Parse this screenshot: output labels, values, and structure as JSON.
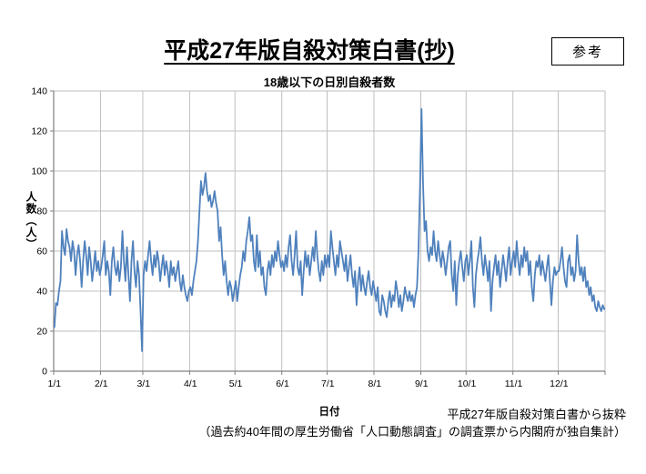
{
  "doc": {
    "title": "平成27年版自殺対策白書(抄)",
    "reference_label": "参考",
    "source_note": "平成27年版自殺対策白書から抜粋",
    "source_detail": "（過去約40年間の厚生労働省「人口動態調査」の調査票から内閣府が独自集計）"
  },
  "chart_data": {
    "type": "line",
    "title": "18歳以下の日別自殺者数",
    "xlabel": "日付",
    "ylabel": "人数（人）",
    "ylim": [
      0,
      140
    ],
    "ytick_step": 20,
    "grid": true,
    "legend": "none",
    "x_tick_labels": [
      "1/1",
      "2/1",
      "3/1",
      "4/1",
      "5/1",
      "6/1",
      "7/1",
      "8/1",
      "9/1",
      "10/1",
      "11/1",
      "12/1"
    ],
    "month_start_days": [
      0,
      31,
      59,
      90,
      120,
      151,
      181,
      212,
      243,
      273,
      304,
      334
    ],
    "days_total": 365,
    "line_color": "#4f81bd",
    "grid_color": "#bfbfbf",
    "axis_color": "#808080",
    "peak_note": {
      "date": "9/1",
      "value": 131
    },
    "values": [
      22,
      34,
      33,
      40,
      45,
      70,
      62,
      58,
      71,
      65,
      62,
      55,
      65,
      60,
      48,
      58,
      63,
      55,
      42,
      55,
      65,
      58,
      48,
      62,
      55,
      45,
      52,
      60,
      50,
      55,
      48,
      52,
      58,
      65,
      48,
      55,
      50,
      38,
      55,
      62,
      52,
      48,
      55,
      45,
      52,
      70,
      55,
      45,
      62,
      48,
      35,
      55,
      65,
      50,
      42,
      55,
      48,
      30,
      10,
      48,
      55,
      50,
      58,
      65,
      55,
      48,
      58,
      52,
      60,
      55,
      45,
      52,
      58,
      48,
      55,
      50,
      42,
      55,
      48,
      52,
      45,
      50,
      55,
      45,
      40,
      48,
      42,
      38,
      35,
      40,
      42,
      38,
      45,
      50,
      55,
      65,
      80,
      95,
      88,
      92,
      99,
      90,
      85,
      88,
      82,
      85,
      90,
      84,
      80,
      65,
      72,
      58,
      48,
      55,
      45,
      38,
      45,
      42,
      35,
      40,
      45,
      35,
      42,
      48,
      52,
      60,
      55,
      65,
      70,
      77,
      65,
      68,
      55,
      50,
      68,
      52,
      60,
      48,
      52,
      42,
      38,
      50,
      55,
      48,
      58,
      52,
      60,
      55,
      65,
      58,
      52,
      55,
      50,
      58,
      52,
      62,
      68,
      55,
      48,
      58,
      70,
      52,
      48,
      55,
      38,
      50,
      60,
      52,
      58,
      48,
      55,
      62,
      55,
      70,
      58,
      50,
      45,
      55,
      48,
      58,
      52,
      58,
      52,
      70,
      62,
      55,
      48,
      58,
      52,
      65,
      60,
      55,
      50,
      58,
      45,
      52,
      58,
      48,
      42,
      50,
      33,
      45,
      52,
      40,
      48,
      42,
      38,
      45,
      50,
      42,
      38,
      45,
      40,
      35,
      42,
      30,
      28,
      38,
      35,
      30,
      27,
      35,
      40,
      32,
      38,
      35,
      45,
      40,
      32,
      38,
      30,
      35,
      42,
      38,
      35,
      40,
      35,
      38,
      32,
      38,
      42,
      60,
      92,
      131,
      94,
      70,
      75,
      60,
      55,
      62,
      58,
      70,
      60,
      55,
      65,
      58,
      52,
      60,
      55,
      48,
      55,
      62,
      65,
      48,
      40,
      55,
      33,
      48,
      55,
      60,
      52,
      45,
      55,
      58,
      48,
      55,
      65,
      42,
      32,
      48,
      55,
      60,
      67,
      55,
      48,
      58,
      52,
      45,
      55,
      30,
      45,
      52,
      58,
      48,
      55,
      42,
      50,
      58,
      52,
      45,
      55,
      62,
      48,
      55,
      60,
      52,
      65,
      55,
      48,
      58,
      52,
      62,
      55,
      60,
      48,
      55,
      42,
      35,
      48,
      55,
      52,
      58,
      48,
      55,
      50,
      45,
      52,
      58,
      45,
      33,
      45,
      52,
      48,
      50,
      50,
      55,
      62,
      52,
      45,
      42,
      55,
      58,
      48,
      52,
      45,
      50,
      68,
      55,
      48,
      52,
      45,
      52,
      42,
      45,
      38,
      42,
      35,
      38,
      32,
      30,
      35,
      32,
      30,
      33,
      31
    ]
  }
}
